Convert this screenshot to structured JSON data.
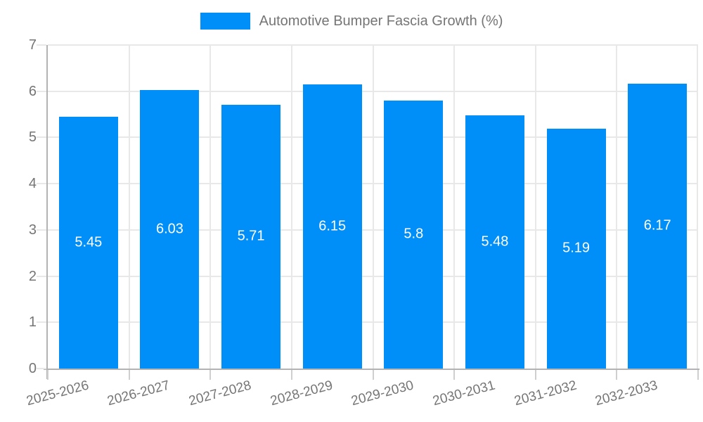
{
  "chart_data": {
    "type": "bar",
    "title": "Automotive Bumper Fascia Growth (%)",
    "legend": {
      "position": "top",
      "label": "Automotive Bumper Fascia Growth (%)"
    },
    "categories": [
      "2025-2026",
      "2026-2027",
      "2027-2028",
      "2028-2029",
      "2029-2030",
      "2030-2031",
      "2031-2032",
      "2032-2033"
    ],
    "values": [
      5.45,
      6.03,
      5.71,
      6.15,
      5.8,
      5.48,
      5.19,
      6.17
    ],
    "value_labels": [
      "5.45",
      "6.03",
      "5.71",
      "6.15",
      "5.8",
      "5.48",
      "5.19",
      "6.17"
    ],
    "xlabel": "",
    "ylabel": "",
    "ylim": [
      0,
      7
    ],
    "yticks": [
      0,
      1,
      2,
      3,
      4,
      5,
      6,
      7
    ],
    "grid": true,
    "colors": {
      "bar": "#008FF8",
      "value_label": "#FFFFFF",
      "axis_text": "#757575",
      "gridline": "#E8E8E8",
      "axis_line": "#B3B3B3",
      "tick_mark": "#CFCFCF",
      "background": "#FFFFFF"
    }
  }
}
